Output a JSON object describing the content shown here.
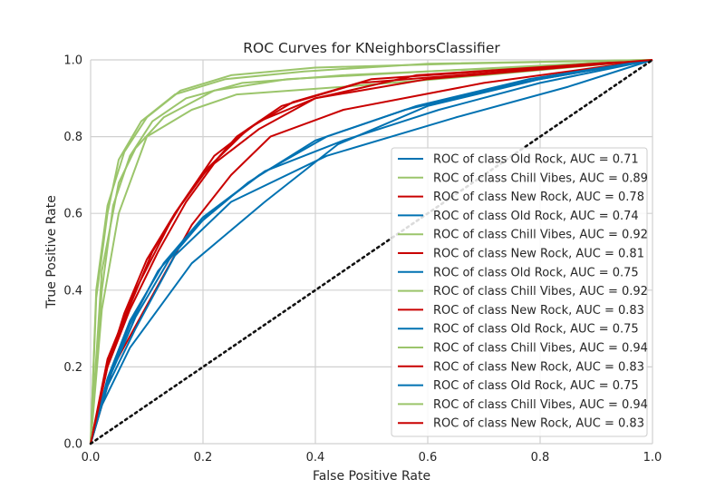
{
  "chart_data": {
    "type": "line",
    "title": "ROC Curves for KNeighborsClassifier",
    "xlabel": "False Positive Rate",
    "ylabel": "True Positive Rate",
    "xlim": [
      0.0,
      1.0
    ],
    "ylim": [
      0.0,
      1.0
    ],
    "xticks": [
      "0.0",
      "0.2",
      "0.4",
      "0.6",
      "0.8",
      "1.0"
    ],
    "yticks": [
      "0.0",
      "0.2",
      "0.4",
      "0.6",
      "0.8",
      "1.0"
    ],
    "grid": true,
    "legend_position": "lower-right",
    "colors": {
      "Old Rock": "#0072B2",
      "Chill Vibes": "#9BC56B",
      "New Rock": "#C90000",
      "chance": "#111111"
    },
    "series": [
      {
        "name": "ROC of class Old Rock, AUC = 0.71",
        "class": "Old Rock",
        "x": [
          0,
          0.02,
          0.07,
          0.18,
          0.31,
          0.44,
          0.6,
          0.8,
          1.0
        ],
        "y": [
          0,
          0.1,
          0.25,
          0.47,
          0.63,
          0.78,
          0.88,
          0.95,
          1.0
        ]
      },
      {
        "name": "ROC of class Chill Vibes, AUC = 0.89",
        "class": "Chill Vibes",
        "x": [
          0,
          0.02,
          0.05,
          0.1,
          0.18,
          0.26,
          0.45,
          0.7,
          1.0
        ],
        "y": [
          0,
          0.35,
          0.6,
          0.8,
          0.87,
          0.91,
          0.93,
          0.96,
          1.0
        ]
      },
      {
        "name": "ROC of class New Rock, AUC = 0.78",
        "class": "New Rock",
        "x": [
          0,
          0.04,
          0.1,
          0.18,
          0.25,
          0.32,
          0.45,
          0.7,
          1.0
        ],
        "y": [
          0,
          0.2,
          0.36,
          0.57,
          0.7,
          0.8,
          0.87,
          0.94,
          1.0
        ]
      },
      {
        "name": "ROC of class Old Rock, AUC = 0.74",
        "class": "Old Rock",
        "x": [
          0,
          0.03,
          0.08,
          0.15,
          0.25,
          0.42,
          0.65,
          0.85,
          1.0
        ],
        "y": [
          0,
          0.15,
          0.3,
          0.49,
          0.63,
          0.75,
          0.85,
          0.93,
          1.0
        ]
      },
      {
        "name": "ROC of class Chill Vibes, AUC = 0.92",
        "class": "Chill Vibes",
        "x": [
          0,
          0.02,
          0.05,
          0.08,
          0.13,
          0.22,
          0.35,
          0.6,
          1.0
        ],
        "y": [
          0,
          0.45,
          0.68,
          0.77,
          0.85,
          0.92,
          0.95,
          0.97,
          1.0
        ]
      },
      {
        "name": "ROC of class New Rock, AUC = 0.81",
        "class": "New Rock",
        "x": [
          0,
          0.03,
          0.08,
          0.15,
          0.22,
          0.3,
          0.4,
          0.6,
          1.0
        ],
        "y": [
          0,
          0.22,
          0.4,
          0.6,
          0.75,
          0.84,
          0.9,
          0.95,
          1.0
        ]
      },
      {
        "name": "ROC of class Old Rock, AUC = 0.75",
        "class": "Old Rock",
        "x": [
          0,
          0.03,
          0.08,
          0.14,
          0.21,
          0.31,
          0.45,
          0.62,
          0.8,
          1.0
        ],
        "y": [
          0,
          0.16,
          0.33,
          0.48,
          0.6,
          0.71,
          0.79,
          0.87,
          0.94,
          1.0
        ]
      },
      {
        "name": "ROC of class Chill Vibes, AUC = 0.92",
        "class": "Chill Vibes",
        "x": [
          0,
          0.02,
          0.04,
          0.07,
          0.11,
          0.17,
          0.27,
          0.45,
          0.75,
          1.0
        ],
        "y": [
          0,
          0.4,
          0.62,
          0.75,
          0.84,
          0.9,
          0.94,
          0.96,
          0.98,
          1.0
        ]
      },
      {
        "name": "ROC of class New Rock, AUC = 0.83",
        "class": "New Rock",
        "x": [
          0,
          0.03,
          0.07,
          0.12,
          0.17,
          0.22,
          0.3,
          0.4,
          0.58,
          1.0
        ],
        "y": [
          0,
          0.2,
          0.35,
          0.5,
          0.63,
          0.73,
          0.82,
          0.9,
          0.96,
          1.0
        ]
      },
      {
        "name": "ROC of class Old Rock, AUC = 0.75",
        "class": "Old Rock",
        "x": [
          0,
          0.03,
          0.07,
          0.13,
          0.2,
          0.3,
          0.42,
          0.58,
          0.78,
          1.0
        ],
        "y": [
          0,
          0.17,
          0.32,
          0.47,
          0.59,
          0.7,
          0.8,
          0.88,
          0.95,
          1.0
        ]
      },
      {
        "name": "ROC of class Chill Vibes, AUC = 0.94",
        "class": "Chill Vibes",
        "x": [
          0,
          0.01,
          0.03,
          0.06,
          0.1,
          0.16,
          0.25,
          0.4,
          0.65,
          1.0
        ],
        "y": [
          0,
          0.4,
          0.62,
          0.76,
          0.85,
          0.92,
          0.96,
          0.98,
          0.99,
          1.0
        ]
      },
      {
        "name": "ROC of class New Rock, AUC = 0.83",
        "class": "New Rock",
        "x": [
          0,
          0.03,
          0.07,
          0.11,
          0.16,
          0.21,
          0.28,
          0.36,
          0.5,
          1.0
        ],
        "y": [
          0,
          0.21,
          0.36,
          0.5,
          0.62,
          0.72,
          0.82,
          0.89,
          0.95,
          1.0
        ]
      },
      {
        "name": "ROC of class Old Rock, AUC = 0.75",
        "class": "Old Rock",
        "x": [
          0,
          0.03,
          0.07,
          0.12,
          0.19,
          0.28,
          0.4,
          0.56,
          0.76,
          1.0
        ],
        "y": [
          0,
          0.16,
          0.31,
          0.45,
          0.57,
          0.68,
          0.79,
          0.87,
          0.94,
          1.0
        ]
      },
      {
        "name": "ROC of class Chill Vibes, AUC = 0.94",
        "class": "Chill Vibes",
        "x": [
          0,
          0.01,
          0.03,
          0.05,
          0.09,
          0.15,
          0.24,
          0.38,
          0.6,
          1.0
        ],
        "y": [
          0,
          0.38,
          0.6,
          0.74,
          0.84,
          0.91,
          0.95,
          0.97,
          0.99,
          1.0
        ]
      },
      {
        "name": "ROC of class New Rock, AUC = 0.83",
        "class": "New Rock",
        "x": [
          0,
          0.03,
          0.06,
          0.1,
          0.15,
          0.2,
          0.26,
          0.34,
          0.48,
          1.0
        ],
        "y": [
          0,
          0.2,
          0.34,
          0.48,
          0.6,
          0.7,
          0.8,
          0.88,
          0.94,
          1.0
        ]
      }
    ],
    "chance_line": {
      "x": [
        0,
        1
      ],
      "y": [
        0,
        1
      ]
    }
  }
}
